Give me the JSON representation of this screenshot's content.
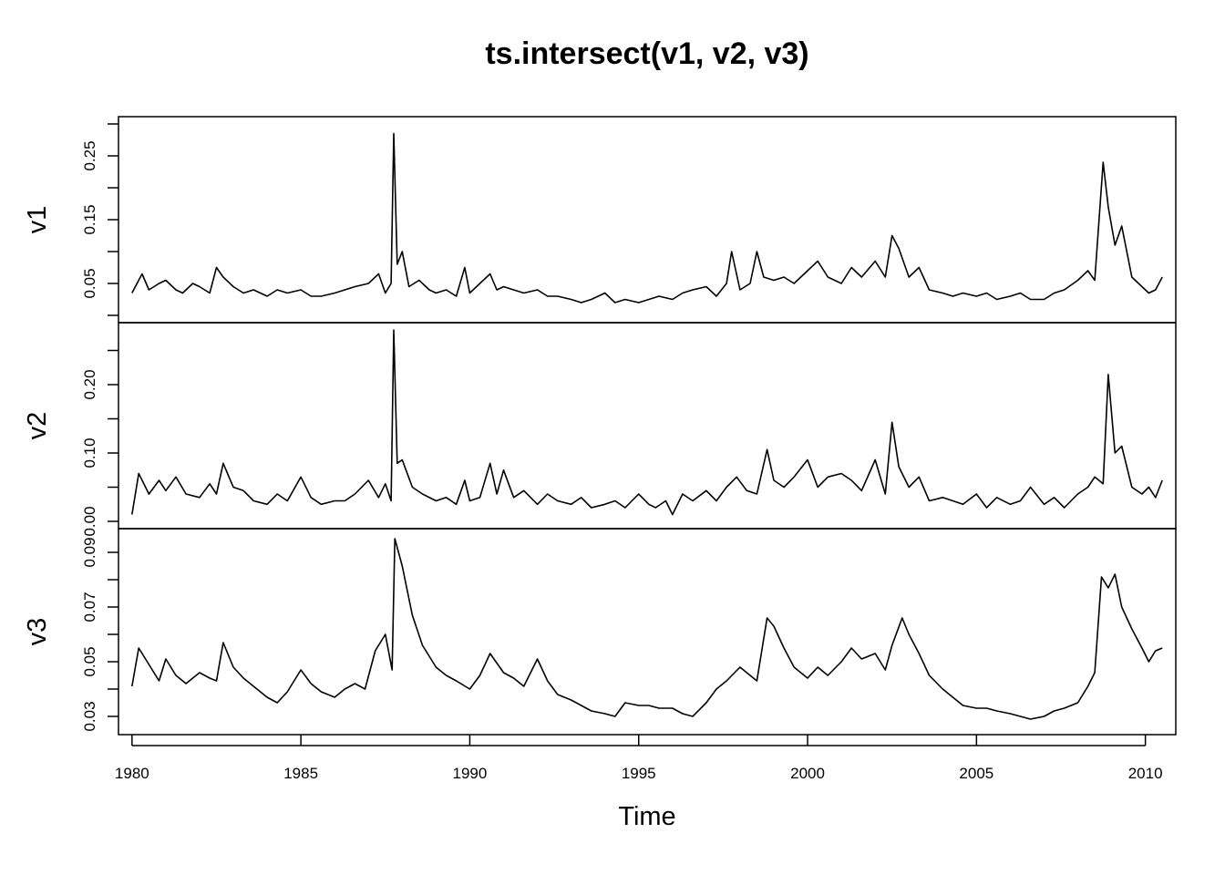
{
  "chart_data": {
    "type": "line",
    "title": "ts.intersect(v1, v2, v3)",
    "xlabel": "Time",
    "xlim": [
      1979.6,
      2010.9
    ],
    "x_ticks": [
      "1980",
      "1985",
      "1990",
      "1995",
      "2000",
      "2005",
      "2010"
    ],
    "panels": [
      {
        "name": "v1",
        "ylim": [
          0.0,
          0.3
        ],
        "y_ticks": [
          "0.05",
          "0.15",
          "0.25"
        ],
        "x": [
          1980.0,
          1980.3,
          1980.5,
          1980.8,
          1981.0,
          1981.3,
          1981.5,
          1981.8,
          1982.0,
          1982.3,
          1982.5,
          1982.7,
          1983.0,
          1983.3,
          1983.6,
          1984.0,
          1984.3,
          1984.6,
          1985.0,
          1985.3,
          1985.6,
          1986.0,
          1986.3,
          1986.6,
          1987.0,
          1987.3,
          1987.5,
          1987.67,
          1987.75,
          1987.85,
          1988.0,
          1988.2,
          1988.5,
          1988.8,
          1989.0,
          1989.3,
          1989.6,
          1989.85,
          1990.0,
          1990.3,
          1990.6,
          1990.8,
          1991.0,
          1991.3,
          1991.6,
          1992.0,
          1992.3,
          1992.6,
          1993.0,
          1993.3,
          1993.6,
          1994.0,
          1994.3,
          1994.6,
          1995.0,
          1995.3,
          1995.6,
          1996.0,
          1996.3,
          1996.6,
          1997.0,
          1997.3,
          1997.6,
          1997.75,
          1998.0,
          1998.3,
          1998.5,
          1998.7,
          1999.0,
          1999.3,
          1999.6,
          2000.0,
          2000.3,
          2000.6,
          2001.0,
          2001.3,
          2001.6,
          2002.0,
          2002.3,
          2002.5,
          2002.7,
          2003.0,
          2003.3,
          2003.6,
          2004.0,
          2004.3,
          2004.6,
          2005.0,
          2005.3,
          2005.6,
          2006.0,
          2006.3,
          2006.6,
          2007.0,
          2007.3,
          2007.6,
          2008.0,
          2008.3,
          2008.5,
          2008.75,
          2008.9,
          2009.1,
          2009.3,
          2009.6,
          2009.9,
          2010.1,
          2010.3,
          2010.5
        ],
        "values": [
          0.035,
          0.065,
          0.04,
          0.05,
          0.055,
          0.04,
          0.035,
          0.05,
          0.045,
          0.035,
          0.075,
          0.06,
          0.045,
          0.035,
          0.04,
          0.03,
          0.04,
          0.035,
          0.04,
          0.03,
          0.03,
          0.035,
          0.04,
          0.045,
          0.05,
          0.065,
          0.035,
          0.05,
          0.285,
          0.08,
          0.1,
          0.045,
          0.055,
          0.04,
          0.035,
          0.04,
          0.03,
          0.075,
          0.035,
          0.05,
          0.065,
          0.04,
          0.045,
          0.04,
          0.035,
          0.04,
          0.03,
          0.03,
          0.025,
          0.02,
          0.025,
          0.035,
          0.02,
          0.025,
          0.02,
          0.025,
          0.03,
          0.025,
          0.035,
          0.04,
          0.045,
          0.03,
          0.05,
          0.1,
          0.04,
          0.05,
          0.1,
          0.06,
          0.055,
          0.06,
          0.05,
          0.07,
          0.085,
          0.06,
          0.05,
          0.075,
          0.06,
          0.085,
          0.06,
          0.125,
          0.105,
          0.06,
          0.075,
          0.04,
          0.035,
          0.03,
          0.035,
          0.03,
          0.035,
          0.025,
          0.03,
          0.035,
          0.025,
          0.025,
          0.035,
          0.04,
          0.055,
          0.07,
          0.055,
          0.24,
          0.17,
          0.11,
          0.14,
          0.06,
          0.045,
          0.035,
          0.04,
          0.06
        ]
      },
      {
        "name": "v2",
        "ylim": [
          0.0,
          0.28
        ],
        "y_ticks": [
          "0.00",
          "0.10",
          "0.20"
        ],
        "x": [
          1980.0,
          1980.2,
          1980.5,
          1980.8,
          1981.0,
          1981.3,
          1981.6,
          1982.0,
          1982.3,
          1982.5,
          1982.7,
          1983.0,
          1983.3,
          1983.6,
          1984.0,
          1984.3,
          1984.6,
          1985.0,
          1985.3,
          1985.6,
          1986.0,
          1986.3,
          1986.6,
          1987.0,
          1987.3,
          1987.5,
          1987.67,
          1987.75,
          1987.85,
          1988.0,
          1988.3,
          1988.6,
          1989.0,
          1989.3,
          1989.6,
          1989.85,
          1990.0,
          1990.3,
          1990.6,
          1990.8,
          1991.0,
          1991.3,
          1991.6,
          1992.0,
          1992.3,
          1992.6,
          1993.0,
          1993.3,
          1993.6,
          1994.0,
          1994.3,
          1994.6,
          1995.0,
          1995.3,
          1995.5,
          1995.8,
          1996.0,
          1996.3,
          1996.6,
          1997.0,
          1997.3,
          1997.6,
          1997.9,
          1998.2,
          1998.5,
          1998.8,
          1999.0,
          1999.3,
          1999.6,
          2000.0,
          2000.3,
          2000.6,
          2001.0,
          2001.3,
          2001.6,
          2002.0,
          2002.3,
          2002.5,
          2002.7,
          2003.0,
          2003.3,
          2003.6,
          2004.0,
          2004.3,
          2004.6,
          2005.0,
          2005.3,
          2005.6,
          2006.0,
          2006.3,
          2006.6,
          2007.0,
          2007.3,
          2007.6,
          2008.0,
          2008.3,
          2008.5,
          2008.75,
          2008.9,
          2009.1,
          2009.3,
          2009.6,
          2009.9,
          2010.1,
          2010.3,
          2010.5
        ],
        "values": [
          0.01,
          0.07,
          0.04,
          0.06,
          0.045,
          0.065,
          0.04,
          0.035,
          0.055,
          0.04,
          0.085,
          0.05,
          0.045,
          0.03,
          0.025,
          0.04,
          0.03,
          0.065,
          0.035,
          0.025,
          0.03,
          0.03,
          0.04,
          0.06,
          0.035,
          0.055,
          0.03,
          0.28,
          0.085,
          0.09,
          0.05,
          0.04,
          0.03,
          0.035,
          0.025,
          0.06,
          0.03,
          0.035,
          0.085,
          0.04,
          0.075,
          0.035,
          0.045,
          0.025,
          0.04,
          0.03,
          0.025,
          0.035,
          0.02,
          0.025,
          0.03,
          0.02,
          0.04,
          0.025,
          0.02,
          0.03,
          0.01,
          0.04,
          0.03,
          0.045,
          0.03,
          0.05,
          0.065,
          0.045,
          0.04,
          0.105,
          0.06,
          0.05,
          0.065,
          0.09,
          0.05,
          0.065,
          0.07,
          0.06,
          0.045,
          0.09,
          0.04,
          0.145,
          0.08,
          0.05,
          0.065,
          0.03,
          0.035,
          0.03,
          0.025,
          0.04,
          0.02,
          0.035,
          0.025,
          0.03,
          0.05,
          0.025,
          0.035,
          0.02,
          0.04,
          0.05,
          0.065,
          0.055,
          0.215,
          0.1,
          0.11,
          0.05,
          0.04,
          0.05,
          0.035,
          0.06
        ]
      },
      {
        "name": "v3",
        "ylim": [
          0.026,
          0.096
        ],
        "y_ticks": [
          "0.03",
          "0.05",
          "0.07",
          "0.09"
        ],
        "x": [
          1980.0,
          1980.2,
          1980.5,
          1980.8,
          1981.0,
          1981.3,
          1981.6,
          1982.0,
          1982.3,
          1982.5,
          1982.7,
          1983.0,
          1983.3,
          1983.6,
          1984.0,
          1984.3,
          1984.6,
          1985.0,
          1985.3,
          1985.6,
          1986.0,
          1986.3,
          1986.6,
          1986.9,
          1987.2,
          1987.5,
          1987.7,
          1987.78,
          1988.0,
          1988.3,
          1988.6,
          1989.0,
          1989.3,
          1989.6,
          1990.0,
          1990.3,
          1990.6,
          1991.0,
          1991.3,
          1991.6,
          1992.0,
          1992.3,
          1992.6,
          1993.0,
          1993.3,
          1993.6,
          1994.0,
          1994.3,
          1994.6,
          1995.0,
          1995.3,
          1995.6,
          1996.0,
          1996.3,
          1996.6,
          1997.0,
          1997.3,
          1997.6,
          1998.0,
          1998.3,
          1998.5,
          1998.8,
          1999.0,
          1999.3,
          1999.6,
          2000.0,
          2000.3,
          2000.6,
          2001.0,
          2001.3,
          2001.6,
          2002.0,
          2002.3,
          2002.5,
          2002.8,
          2003.0,
          2003.3,
          2003.6,
          2004.0,
          2004.3,
          2004.6,
          2005.0,
          2005.3,
          2005.6,
          2006.0,
          2006.3,
          2006.6,
          2007.0,
          2007.3,
          2007.6,
          2008.0,
          2008.3,
          2008.5,
          2008.7,
          2008.9,
          2009.1,
          2009.3,
          2009.6,
          2009.9,
          2010.1,
          2010.3,
          2010.5
        ],
        "values": [
          0.041,
          0.055,
          0.049,
          0.043,
          0.051,
          0.045,
          0.042,
          0.046,
          0.044,
          0.043,
          0.057,
          0.048,
          0.044,
          0.041,
          0.037,
          0.035,
          0.039,
          0.047,
          0.042,
          0.039,
          0.037,
          0.04,
          0.042,
          0.04,
          0.054,
          0.06,
          0.047,
          0.095,
          0.085,
          0.067,
          0.056,
          0.048,
          0.045,
          0.043,
          0.04,
          0.045,
          0.053,
          0.046,
          0.044,
          0.041,
          0.051,
          0.043,
          0.038,
          0.036,
          0.034,
          0.032,
          0.031,
          0.03,
          0.035,
          0.034,
          0.034,
          0.033,
          0.033,
          0.031,
          0.03,
          0.035,
          0.04,
          0.043,
          0.048,
          0.045,
          0.043,
          0.066,
          0.063,
          0.055,
          0.048,
          0.044,
          0.048,
          0.045,
          0.05,
          0.055,
          0.051,
          0.053,
          0.047,
          0.056,
          0.066,
          0.06,
          0.053,
          0.045,
          0.04,
          0.037,
          0.034,
          0.033,
          0.033,
          0.032,
          0.031,
          0.03,
          0.029,
          0.03,
          0.032,
          0.033,
          0.035,
          0.041,
          0.046,
          0.081,
          0.077,
          0.082,
          0.07,
          0.062,
          0.055,
          0.05,
          0.054,
          0.055
        ]
      }
    ]
  }
}
